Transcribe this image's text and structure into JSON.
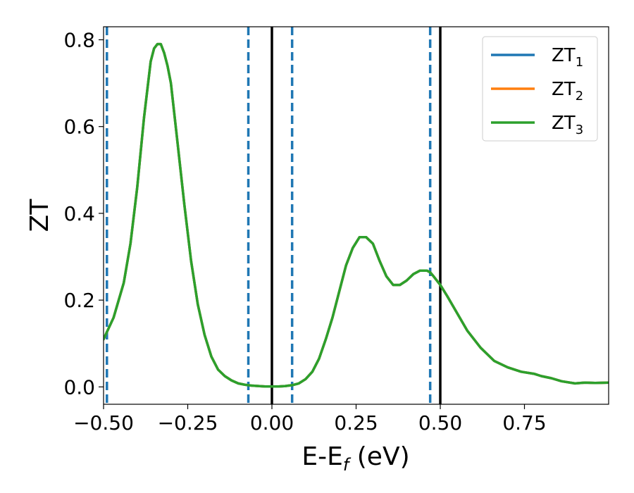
{
  "chart_data": {
    "type": "line",
    "xlabel": "E-E",
    "xlabel_sub": "f",
    "xlabel_unit": " (eV)",
    "ylabel": "ZT",
    "xlim": [
      -0.5,
      1.0
    ],
    "ylim": [
      -0.04,
      0.83
    ],
    "x_ticks": [
      -0.5,
      -0.25,
      0.0,
      0.25,
      0.5,
      0.75
    ],
    "x_tick_labels": [
      "−0.50",
      "−0.25",
      "0.00",
      "0.25",
      "0.50",
      "0.75"
    ],
    "y_ticks": [
      0.0,
      0.2,
      0.4,
      0.6,
      0.8
    ],
    "y_tick_labels": [
      "0.0",
      "0.2",
      "0.4",
      "0.6",
      "0.8"
    ],
    "grid": false,
    "legend_placement": "top-right",
    "series": [
      {
        "name": "ZT",
        "subscript": "1",
        "color": "#1f77b4",
        "x": [
          -0.5,
          -0.47,
          -0.44,
          -0.42,
          -0.4,
          -0.38,
          -0.36,
          -0.35,
          -0.34,
          -0.33,
          -0.32,
          -0.31,
          -0.3,
          -0.29,
          -0.28,
          -0.26,
          -0.24,
          -0.22,
          -0.2,
          -0.18,
          -0.16,
          -0.14,
          -0.12,
          -0.1,
          -0.08,
          -0.06,
          -0.04,
          -0.02,
          0.0,
          0.02,
          0.04,
          0.06,
          0.08,
          0.1,
          0.12,
          0.14,
          0.16,
          0.18,
          0.2,
          0.22,
          0.24,
          0.26,
          0.28,
          0.3,
          0.32,
          0.34,
          0.36,
          0.38,
          0.4,
          0.42,
          0.44,
          0.46,
          0.47,
          0.48,
          0.5,
          0.52,
          0.55,
          0.58,
          0.62,
          0.66,
          0.7,
          0.74,
          0.78,
          0.8,
          0.83,
          0.86,
          0.9,
          0.93,
          0.96,
          1.0
        ],
        "y": [
          0.11,
          0.16,
          0.24,
          0.33,
          0.46,
          0.62,
          0.75,
          0.78,
          0.79,
          0.79,
          0.77,
          0.74,
          0.7,
          0.63,
          0.56,
          0.42,
          0.29,
          0.19,
          0.12,
          0.07,
          0.04,
          0.025,
          0.015,
          0.008,
          0.005,
          0.003,
          0.002,
          0.001,
          0.001,
          0.001,
          0.002,
          0.004,
          0.008,
          0.018,
          0.035,
          0.065,
          0.11,
          0.16,
          0.22,
          0.28,
          0.32,
          0.345,
          0.345,
          0.33,
          0.29,
          0.255,
          0.235,
          0.235,
          0.245,
          0.26,
          0.268,
          0.268,
          0.264,
          0.255,
          0.235,
          0.21,
          0.17,
          0.13,
          0.09,
          0.06,
          0.045,
          0.035,
          0.03,
          0.025,
          0.02,
          0.013,
          0.008,
          0.01,
          0.009,
          0.01
        ]
      },
      {
        "name": "ZT",
        "subscript": "2",
        "color": "#ff7f0e",
        "x": [
          -0.5,
          -0.47,
          -0.44,
          -0.42,
          -0.4,
          -0.38,
          -0.36,
          -0.35,
          -0.34,
          -0.33,
          -0.32,
          -0.31,
          -0.3,
          -0.29,
          -0.28,
          -0.26,
          -0.24,
          -0.22,
          -0.2,
          -0.18,
          -0.16,
          -0.14,
          -0.12,
          -0.1,
          -0.08,
          -0.06,
          -0.04,
          -0.02,
          0.0,
          0.02,
          0.04,
          0.06,
          0.08,
          0.1,
          0.12,
          0.14,
          0.16,
          0.18,
          0.2,
          0.22,
          0.24,
          0.26,
          0.28,
          0.3,
          0.32,
          0.34,
          0.36,
          0.38,
          0.4,
          0.42,
          0.44,
          0.46,
          0.47,
          0.48,
          0.5,
          0.52,
          0.55,
          0.58,
          0.62,
          0.66,
          0.7,
          0.74,
          0.78,
          0.8,
          0.83,
          0.86,
          0.9,
          0.93,
          0.96,
          1.0
        ],
        "y": [
          0.11,
          0.16,
          0.24,
          0.33,
          0.46,
          0.62,
          0.75,
          0.78,
          0.79,
          0.79,
          0.77,
          0.74,
          0.7,
          0.63,
          0.56,
          0.42,
          0.29,
          0.19,
          0.12,
          0.07,
          0.04,
          0.025,
          0.015,
          0.008,
          0.005,
          0.003,
          0.002,
          0.001,
          0.001,
          0.001,
          0.002,
          0.004,
          0.008,
          0.018,
          0.035,
          0.065,
          0.11,
          0.16,
          0.22,
          0.28,
          0.32,
          0.345,
          0.345,
          0.33,
          0.29,
          0.255,
          0.235,
          0.235,
          0.245,
          0.26,
          0.268,
          0.268,
          0.264,
          0.255,
          0.235,
          0.21,
          0.17,
          0.13,
          0.09,
          0.06,
          0.045,
          0.035,
          0.03,
          0.025,
          0.02,
          0.013,
          0.008,
          0.01,
          0.009,
          0.01
        ]
      },
      {
        "name": "ZT",
        "subscript": "3",
        "color": "#2ca02c",
        "x": [
          -0.5,
          -0.47,
          -0.44,
          -0.42,
          -0.4,
          -0.38,
          -0.36,
          -0.35,
          -0.34,
          -0.33,
          -0.32,
          -0.31,
          -0.3,
          -0.29,
          -0.28,
          -0.26,
          -0.24,
          -0.22,
          -0.2,
          -0.18,
          -0.16,
          -0.14,
          -0.12,
          -0.1,
          -0.08,
          -0.06,
          -0.04,
          -0.02,
          0.0,
          0.02,
          0.04,
          0.06,
          0.08,
          0.1,
          0.12,
          0.14,
          0.16,
          0.18,
          0.2,
          0.22,
          0.24,
          0.26,
          0.28,
          0.3,
          0.32,
          0.34,
          0.36,
          0.38,
          0.4,
          0.42,
          0.44,
          0.46,
          0.47,
          0.48,
          0.5,
          0.52,
          0.55,
          0.58,
          0.62,
          0.66,
          0.7,
          0.74,
          0.78,
          0.8,
          0.83,
          0.86,
          0.9,
          0.93,
          0.96,
          1.0
        ],
        "y": [
          0.11,
          0.16,
          0.24,
          0.33,
          0.46,
          0.62,
          0.75,
          0.78,
          0.79,
          0.79,
          0.77,
          0.74,
          0.7,
          0.63,
          0.56,
          0.42,
          0.29,
          0.19,
          0.12,
          0.07,
          0.04,
          0.025,
          0.015,
          0.008,
          0.005,
          0.003,
          0.002,
          0.001,
          0.001,
          0.001,
          0.002,
          0.004,
          0.008,
          0.018,
          0.035,
          0.065,
          0.11,
          0.16,
          0.22,
          0.28,
          0.32,
          0.345,
          0.345,
          0.33,
          0.29,
          0.255,
          0.235,
          0.235,
          0.245,
          0.26,
          0.268,
          0.268,
          0.264,
          0.255,
          0.235,
          0.21,
          0.17,
          0.13,
          0.09,
          0.06,
          0.045,
          0.035,
          0.03,
          0.025,
          0.02,
          0.013,
          0.008,
          0.01,
          0.009,
          0.01
        ]
      }
    ],
    "vlines": [
      {
        "x": -0.49,
        "style": "dashed",
        "color": "#1f77b4"
      },
      {
        "x": -0.07,
        "style": "dashed",
        "color": "#1f77b4"
      },
      {
        "x": 0.06,
        "style": "dashed",
        "color": "#1f77b4"
      },
      {
        "x": 0.47,
        "style": "dashed",
        "color": "#1f77b4"
      },
      {
        "x": 0.0,
        "style": "solid",
        "color": "#000000"
      },
      {
        "x": 0.5,
        "style": "solid",
        "color": "#000000"
      }
    ]
  }
}
